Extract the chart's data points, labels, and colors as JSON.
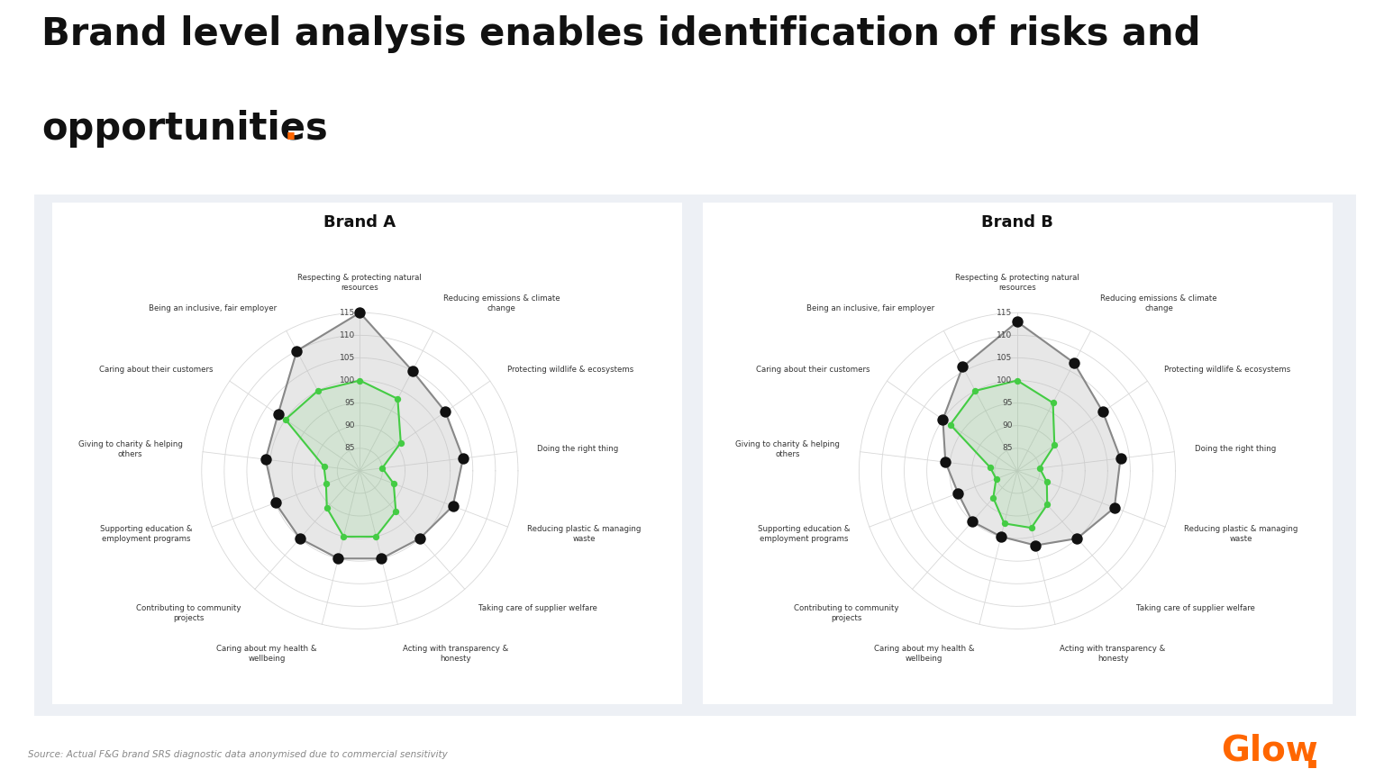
{
  "title_line1": "Brand level analysis enables identification of risks and",
  "title_line2": "opportunities",
  "title_dot": ".",
  "source_text": "Source: Actual F&G brand SRS diagnostic data anonymised due to commercial sensitivity",
  "brand_a_title": "Brand A",
  "brand_b_title": "Brand B",
  "categories": [
    "Respecting & protecting natural\nresources",
    "Reducing emissions & climate\nchange",
    "Protecting wildlife & ecosystems",
    "Doing the right thing",
    "Reducing plastic & managing\nwaste",
    "Taking care of supplier welfare",
    "Acting with transparency &\nhonesty",
    "Caring about my health &\nwellbeing",
    "Contributing to community\nprojects",
    "Supporting education &\nemployment programs",
    "Giving to charity & helping\nothers",
    "Caring about their customers",
    "Being an inclusive, fair employer"
  ],
  "brand_a_black": [
    115,
    105,
    103,
    103,
    102,
    100,
    100,
    100,
    100,
    100,
    101,
    102,
    110
  ],
  "brand_a_green": [
    100,
    98,
    91,
    85,
    88,
    92,
    95,
    95,
    91,
    88,
    88,
    100,
    100
  ],
  "brand_b_black": [
    113,
    107,
    103,
    103,
    103,
    100,
    97,
    95,
    95,
    94,
    96,
    100,
    106
  ],
  "brand_b_green": [
    100,
    97,
    90,
    85,
    87,
    90,
    93,
    92,
    88,
    85,
    86,
    98,
    100
  ],
  "r_min": 80,
  "r_max": 115,
  "r_ticks": [
    80,
    85,
    90,
    95,
    100,
    105,
    110,
    115
  ],
  "black_color": "#111111",
  "green_color": "#44cc44",
  "gray_fill_color": "#cccccc",
  "gray_line_color": "#999999",
  "grid_color": "#d8d8d8",
  "background_color": "#ffffff",
  "panel_outer_bg": "#eef0f4",
  "panel_inner_bg": "#ffffff",
  "panel_border": "#d0d5dd",
  "title_fontsize": 30,
  "brand_title_fontsize": 13,
  "label_fontsize": 6.2,
  "tick_fontsize": 6.5
}
